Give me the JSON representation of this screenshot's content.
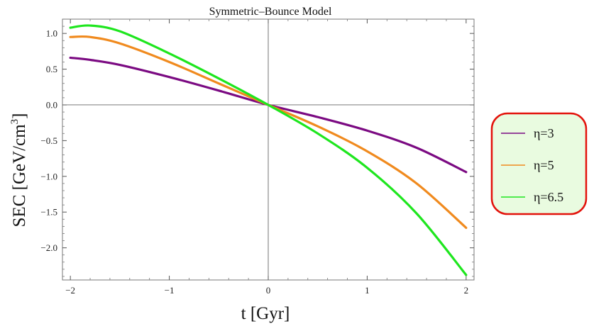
{
  "chart_data": {
    "type": "line",
    "title": "Symmetric–Bounce Model",
    "xlabel": "t [Gyr]",
    "ylabel_prefix": "SEC [GeV/cm",
    "ylabel_sup": "3",
    "ylabel_suffix": "]",
    "xlim": [
      -2.08,
      2.08
    ],
    "ylim": [
      -2.45,
      1.2
    ],
    "xticks": [
      -2,
      -1,
      0,
      1,
      2
    ],
    "xtick_labels": [
      "−2",
      "−1",
      "0",
      "1",
      "2"
    ],
    "yticks": [
      -2.0,
      -1.5,
      -1.0,
      -0.5,
      0.0,
      0.5,
      1.0
    ],
    "ytick_labels": [
      "−2.0",
      "−1.5",
      "−1.0",
      "−0.5",
      "0.0",
      "0.5",
      "1.0"
    ],
    "grid": false,
    "legend_position": "right",
    "x": [
      -2.0,
      -1.8,
      -1.5,
      -1.0,
      -0.5,
      0.0,
      0.5,
      1.0,
      1.5,
      2.0
    ],
    "series": [
      {
        "name": "η=3",
        "color": "#7b0a82",
        "values": [
          0.66,
          0.63,
          0.56,
          0.39,
          0.2,
          0.0,
          -0.17,
          -0.36,
          -0.6,
          -0.94
        ]
      },
      {
        "name": "η=5",
        "color": "#f08a1e",
        "values": [
          0.95,
          0.95,
          0.86,
          0.6,
          0.3,
          0.0,
          -0.3,
          -0.65,
          -1.1,
          -1.72
        ]
      },
      {
        "name": "η=6.5",
        "color": "#1ee61e",
        "values": [
          1.08,
          1.11,
          1.03,
          0.72,
          0.37,
          0.0,
          -0.4,
          -0.88,
          -1.52,
          -2.38
        ]
      }
    ]
  },
  "legend": {
    "background": "#e9fbe0",
    "border": "#e3120b"
  }
}
